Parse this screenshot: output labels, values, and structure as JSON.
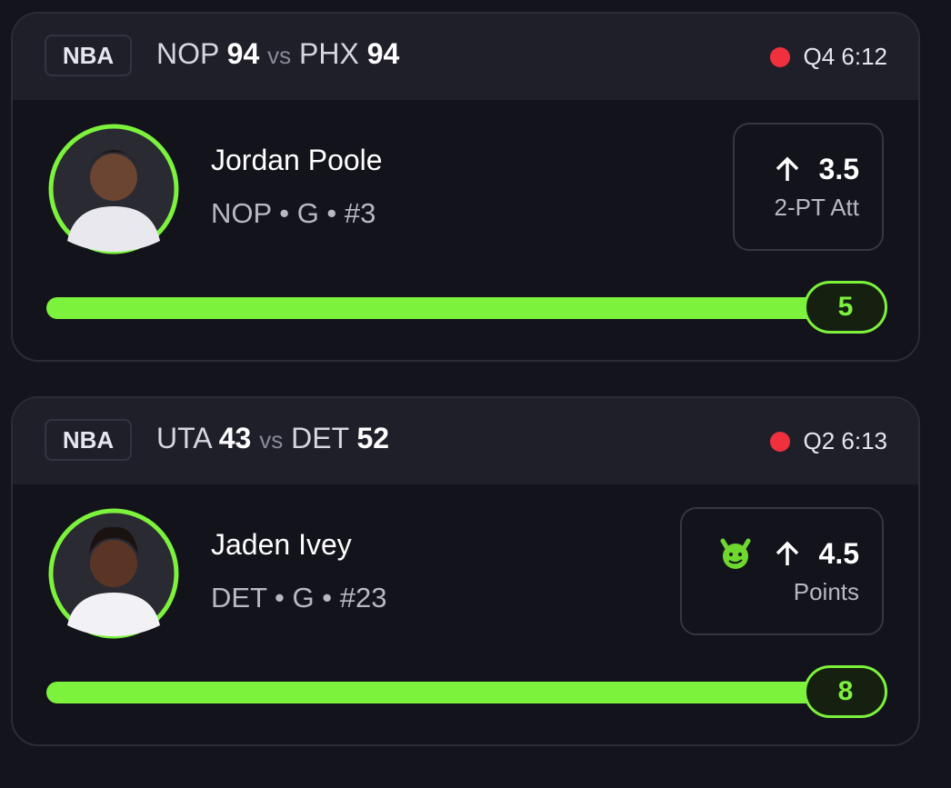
{
  "cards": [
    {
      "league": "NBA",
      "team1": "NOP",
      "score1": "94",
      "vs": "vs",
      "team2": "PHX",
      "score2": "94",
      "clock": "Q4 6:12",
      "player": "Jordan Poole",
      "info": "NOP • G • #3",
      "line": "3.5",
      "stat": "2-PT Att",
      "current": "5"
    },
    {
      "league": "NBA",
      "team1": "UTA",
      "score1": "43",
      "vs": "vs",
      "team2": "DET",
      "score2": "52",
      "clock": "Q2 6:13",
      "player": "Jaden Ivey",
      "info": "DET • G • #23",
      "line": "4.5",
      "stat": "Points",
      "current": "8"
    }
  ]
}
